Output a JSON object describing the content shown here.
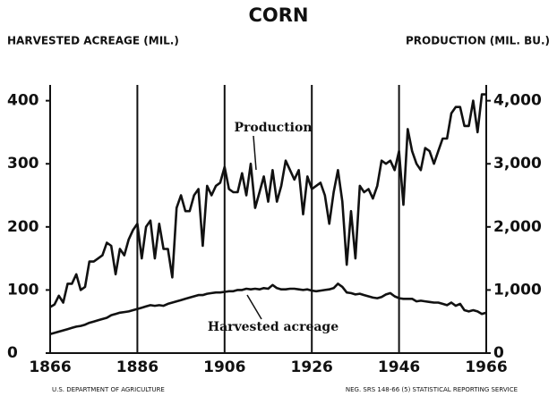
{
  "chart_data": {
    "type": "line",
    "title": "CORN",
    "ylabel": "HARVESTED ACREAGE (MIL.)",
    "y2label": "PRODUCTION (MIL. BU.)",
    "footer_left": "U.S. DEPARTMENT OF AGRICULTURE",
    "footer_right": "NEG. SRS 148-66 (5)  STATISTICAL REPORTING SERVICE",
    "x": [
      1866,
      1867,
      1868,
      1869,
      1870,
      1871,
      1872,
      1873,
      1874,
      1875,
      1876,
      1877,
      1878,
      1879,
      1880,
      1881,
      1882,
      1883,
      1884,
      1885,
      1886,
      1887,
      1888,
      1889,
      1890,
      1891,
      1892,
      1893,
      1894,
      1895,
      1896,
      1897,
      1898,
      1899,
      1900,
      1901,
      1902,
      1903,
      1904,
      1905,
      1906,
      1907,
      1908,
      1909,
      1910,
      1911,
      1912,
      1913,
      1914,
      1915,
      1916,
      1917,
      1918,
      1919,
      1920,
      1921,
      1922,
      1923,
      1924,
      1925,
      1926,
      1927,
      1928,
      1929,
      1930,
      1931,
      1932,
      1933,
      1934,
      1935,
      1936,
      1937,
      1938,
      1939,
      1940,
      1941,
      1942,
      1943,
      1944,
      1945,
      1946,
      1947,
      1948,
      1949,
      1950,
      1951,
      1952,
      1953,
      1954,
      1955,
      1956,
      1957,
      1958,
      1959,
      1960,
      1961,
      1962,
      1963,
      1964,
      1965,
      1966
    ],
    "series": [
      {
        "name": "Harvested acreage",
        "color": "#111111",
        "values": [
          30,
          32,
          34,
          36,
          38,
          40,
          42,
          43,
          45,
          48,
          50,
          52,
          54,
          56,
          60,
          62,
          64,
          65,
          66,
          68,
          70,
          72,
          74,
          76,
          75,
          76,
          75,
          78,
          80,
          82,
          84,
          86,
          88,
          90,
          92,
          92,
          94,
          95,
          96,
          96,
          97,
          98,
          98,
          100,
          100,
          102,
          101,
          102,
          101,
          103,
          102,
          108,
          103,
          101,
          101,
          102,
          102,
          101,
          100,
          101,
          99,
          98,
          99,
          100,
          101,
          103,
          110,
          105,
          96,
          95,
          93,
          94,
          92,
          90,
          88,
          87,
          89,
          93,
          95,
          90,
          87,
          86,
          86,
          86,
          82,
          83,
          82,
          81,
          80,
          80,
          78,
          76,
          80,
          75,
          78,
          68,
          66,
          68,
          66,
          62,
          64
        ]
      },
      {
        "name": "Production",
        "color": "#111111",
        "axis": "y2",
        "values": [
          730,
          770,
          910,
          800,
          1100,
          1100,
          1250,
          1000,
          1050,
          1450,
          1450,
          1500,
          1550,
          1750,
          1700,
          1250,
          1650,
          1550,
          1800,
          1950,
          2050,
          1500,
          2000,
          2100,
          1500,
          2050,
          1650,
          1650,
          1200,
          2300,
          2500,
          2250,
          2250,
          2500,
          2600,
          1700,
          2650,
          2500,
          2650,
          2700,
          2950,
          2600,
          2550,
          2550,
          2850,
          2500,
          3000,
          2300,
          2550,
          2800,
          2400,
          2900,
          2400,
          2650,
          3050,
          2900,
          2750,
          2900,
          2200,
          2800,
          2600,
          2650,
          2700,
          2500,
          2050,
          2550,
          2900,
          2400,
          1400,
          2250,
          1500,
          2650,
          2550,
          2600,
          2450,
          2650,
          3050,
          3000,
          3050,
          2900,
          3200,
          2350,
          3550,
          3200,
          3000,
          2900,
          3250,
          3200,
          3000,
          3200,
          3400,
          3400,
          3800,
          3900,
          3900,
          3600,
          3600,
          4000,
          3500,
          4100,
          4100
        ]
      }
    ],
    "xlim": [
      1866,
      1966
    ],
    "xticks": [
      1866,
      1886,
      1906,
      1926,
      1946,
      1966
    ],
    "ylim": [
      0,
      425
    ],
    "yticks": [
      0,
      100,
      200,
      300,
      400
    ],
    "y2lim": [
      0,
      4250
    ],
    "y2ticks": [
      0,
      {
        "value": 1000,
        "label": "1,000"
      },
      {
        "value": 2000,
        "label": "2,000"
      },
      {
        "value": 3000,
        "label": "3,000"
      },
      {
        "value": 4000,
        "label": "4,000"
      }
    ],
    "grid": true
  }
}
